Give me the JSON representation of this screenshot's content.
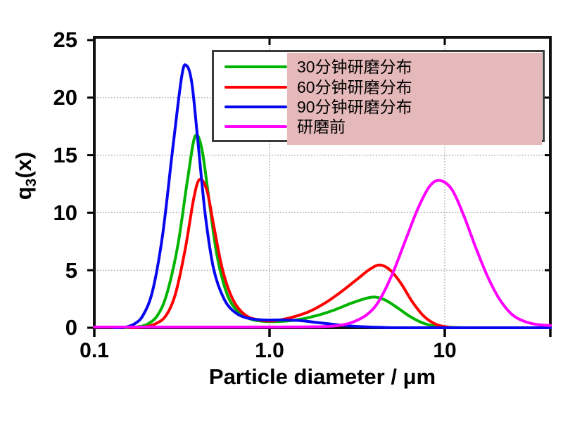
{
  "chart_data": {
    "type": "line",
    "title": "",
    "xlabel": "Particle diameter / μm",
    "ylabel": {
      "pre": "q",
      "sub": "3",
      "post": "(x)"
    },
    "x_scale": "log",
    "xlim": [
      0.1,
      40
    ],
    "ylim": [
      0,
      25
    ],
    "x_tick_labels": [
      "0.1",
      "1.0",
      "10"
    ],
    "x_tick_values": [
      0.1,
      1.0,
      10
    ],
    "y_tick_labels": [
      "25",
      "20",
      "15",
      "10",
      "5",
      "0"
    ],
    "y_tick_values": [
      25,
      20,
      15,
      10,
      5,
      0
    ],
    "x_gridlines": [
      1.0,
      10
    ],
    "y_gridlines": [
      5,
      10,
      15,
      20
    ],
    "grid_color": "#999999",
    "frame_color": "#111111",
    "legend": {
      "position": "top-center-inside",
      "highlight_color": "#e5b8ba",
      "border_color": "#3a3a3a"
    },
    "series": [
      {
        "key": "30min",
        "name": "30分钟研磨分布",
        "color": "#00b400",
        "peaks": [
          {
            "x": 0.38,
            "y": 16.6
          },
          {
            "x": 3.8,
            "y": 2.65
          }
        ],
        "points": [
          [
            0.15,
            0
          ],
          [
            0.17,
            0.05
          ],
          [
            0.2,
            0.3
          ],
          [
            0.23,
            1.1
          ],
          [
            0.26,
            3.0
          ],
          [
            0.3,
            7.2
          ],
          [
            0.34,
            12.8
          ],
          [
            0.375,
            16.6
          ],
          [
            0.41,
            15.6
          ],
          [
            0.45,
            11.3
          ],
          [
            0.5,
            6.4
          ],
          [
            0.57,
            3.0
          ],
          [
            0.66,
            1.4
          ],
          [
            0.78,
            0.75
          ],
          [
            0.95,
            0.55
          ],
          [
            1.15,
            0.55
          ],
          [
            1.45,
            0.7
          ],
          [
            1.85,
            1.05
          ],
          [
            2.35,
            1.55
          ],
          [
            2.95,
            2.15
          ],
          [
            3.8,
            2.65
          ],
          [
            4.5,
            2.45
          ],
          [
            5.3,
            1.8
          ],
          [
            6.3,
            1.0
          ],
          [
            7.6,
            0.38
          ],
          [
            9.2,
            0.1
          ],
          [
            11.5,
            0.02
          ],
          [
            15,
            0
          ],
          [
            40,
            0
          ]
        ]
      },
      {
        "key": "60min",
        "name": "60分钟研磨分布",
        "color": "#fe0000",
        "peaks": [
          {
            "x": 0.4,
            "y": 12.9
          },
          {
            "x": 4.25,
            "y": 5.45
          }
        ],
        "points": [
          [
            0.16,
            0
          ],
          [
            0.19,
            0.05
          ],
          [
            0.22,
            0.3
          ],
          [
            0.255,
            1.0
          ],
          [
            0.29,
            2.9
          ],
          [
            0.33,
            6.8
          ],
          [
            0.37,
            11.3
          ],
          [
            0.4,
            12.9
          ],
          [
            0.44,
            11.9
          ],
          [
            0.48,
            8.9
          ],
          [
            0.54,
            5.0
          ],
          [
            0.62,
            2.4
          ],
          [
            0.72,
            1.15
          ],
          [
            0.85,
            0.7
          ],
          [
            1.05,
            0.6
          ],
          [
            1.3,
            0.85
          ],
          [
            1.65,
            1.35
          ],
          [
            2.05,
            2.1
          ],
          [
            2.55,
            3.1
          ],
          [
            3.15,
            4.2
          ],
          [
            3.75,
            5.1
          ],
          [
            4.25,
            5.45
          ],
          [
            4.85,
            5.05
          ],
          [
            5.6,
            3.9
          ],
          [
            6.5,
            2.3
          ],
          [
            7.6,
            1.0
          ],
          [
            8.9,
            0.3
          ],
          [
            10.5,
            0.05
          ],
          [
            12.5,
            0
          ],
          [
            40,
            0
          ]
        ]
      },
      {
        "key": "90min",
        "name": "90分钟研磨分布",
        "color": "#0707f0",
        "peaks": [
          {
            "x": 0.335,
            "y": 22.8
          }
        ],
        "points": [
          [
            0.13,
            0
          ],
          [
            0.15,
            0.05
          ],
          [
            0.17,
            0.35
          ],
          [
            0.19,
            1.1
          ],
          [
            0.215,
            3.2
          ],
          [
            0.245,
            8.0
          ],
          [
            0.28,
            15.5
          ],
          [
            0.315,
            21.8
          ],
          [
            0.335,
            22.8
          ],
          [
            0.36,
            21.3
          ],
          [
            0.39,
            16.2
          ],
          [
            0.43,
            9.8
          ],
          [
            0.48,
            5.1
          ],
          [
            0.55,
            2.5
          ],
          [
            0.64,
            1.3
          ],
          [
            0.76,
            0.82
          ],
          [
            0.92,
            0.68
          ],
          [
            1.15,
            0.68
          ],
          [
            1.5,
            0.62
          ],
          [
            1.9,
            0.44
          ],
          [
            2.5,
            0.24
          ],
          [
            3.3,
            0.1
          ],
          [
            4.6,
            0.02
          ],
          [
            6.5,
            0
          ],
          [
            40,
            0
          ]
        ]
      },
      {
        "key": "pre-grinding",
        "name": "研磨前",
        "color": "#ff00ff",
        "peaks": [
          {
            "x": 9.4,
            "y": 12.8
          }
        ],
        "points": [
          [
            0.1,
            0.06
          ],
          [
            0.5,
            0.06
          ],
          [
            1.0,
            0.06
          ],
          [
            1.5,
            0.07
          ],
          [
            2.0,
            0.1
          ],
          [
            2.5,
            0.2
          ],
          [
            3.0,
            0.5
          ],
          [
            3.6,
            1.15
          ],
          [
            4.2,
            2.3
          ],
          [
            5.0,
            4.6
          ],
          [
            5.9,
            7.4
          ],
          [
            7.0,
            10.3
          ],
          [
            8.2,
            12.3
          ],
          [
            9.4,
            12.8
          ],
          [
            11.0,
            12.0
          ],
          [
            12.8,
            9.8
          ],
          [
            15.0,
            7.0
          ],
          [
            17.5,
            4.5
          ],
          [
            20.5,
            2.5
          ],
          [
            24,
            1.2
          ],
          [
            28,
            0.6
          ],
          [
            33,
            0.3
          ],
          [
            40,
            0.2
          ]
        ]
      }
    ]
  }
}
